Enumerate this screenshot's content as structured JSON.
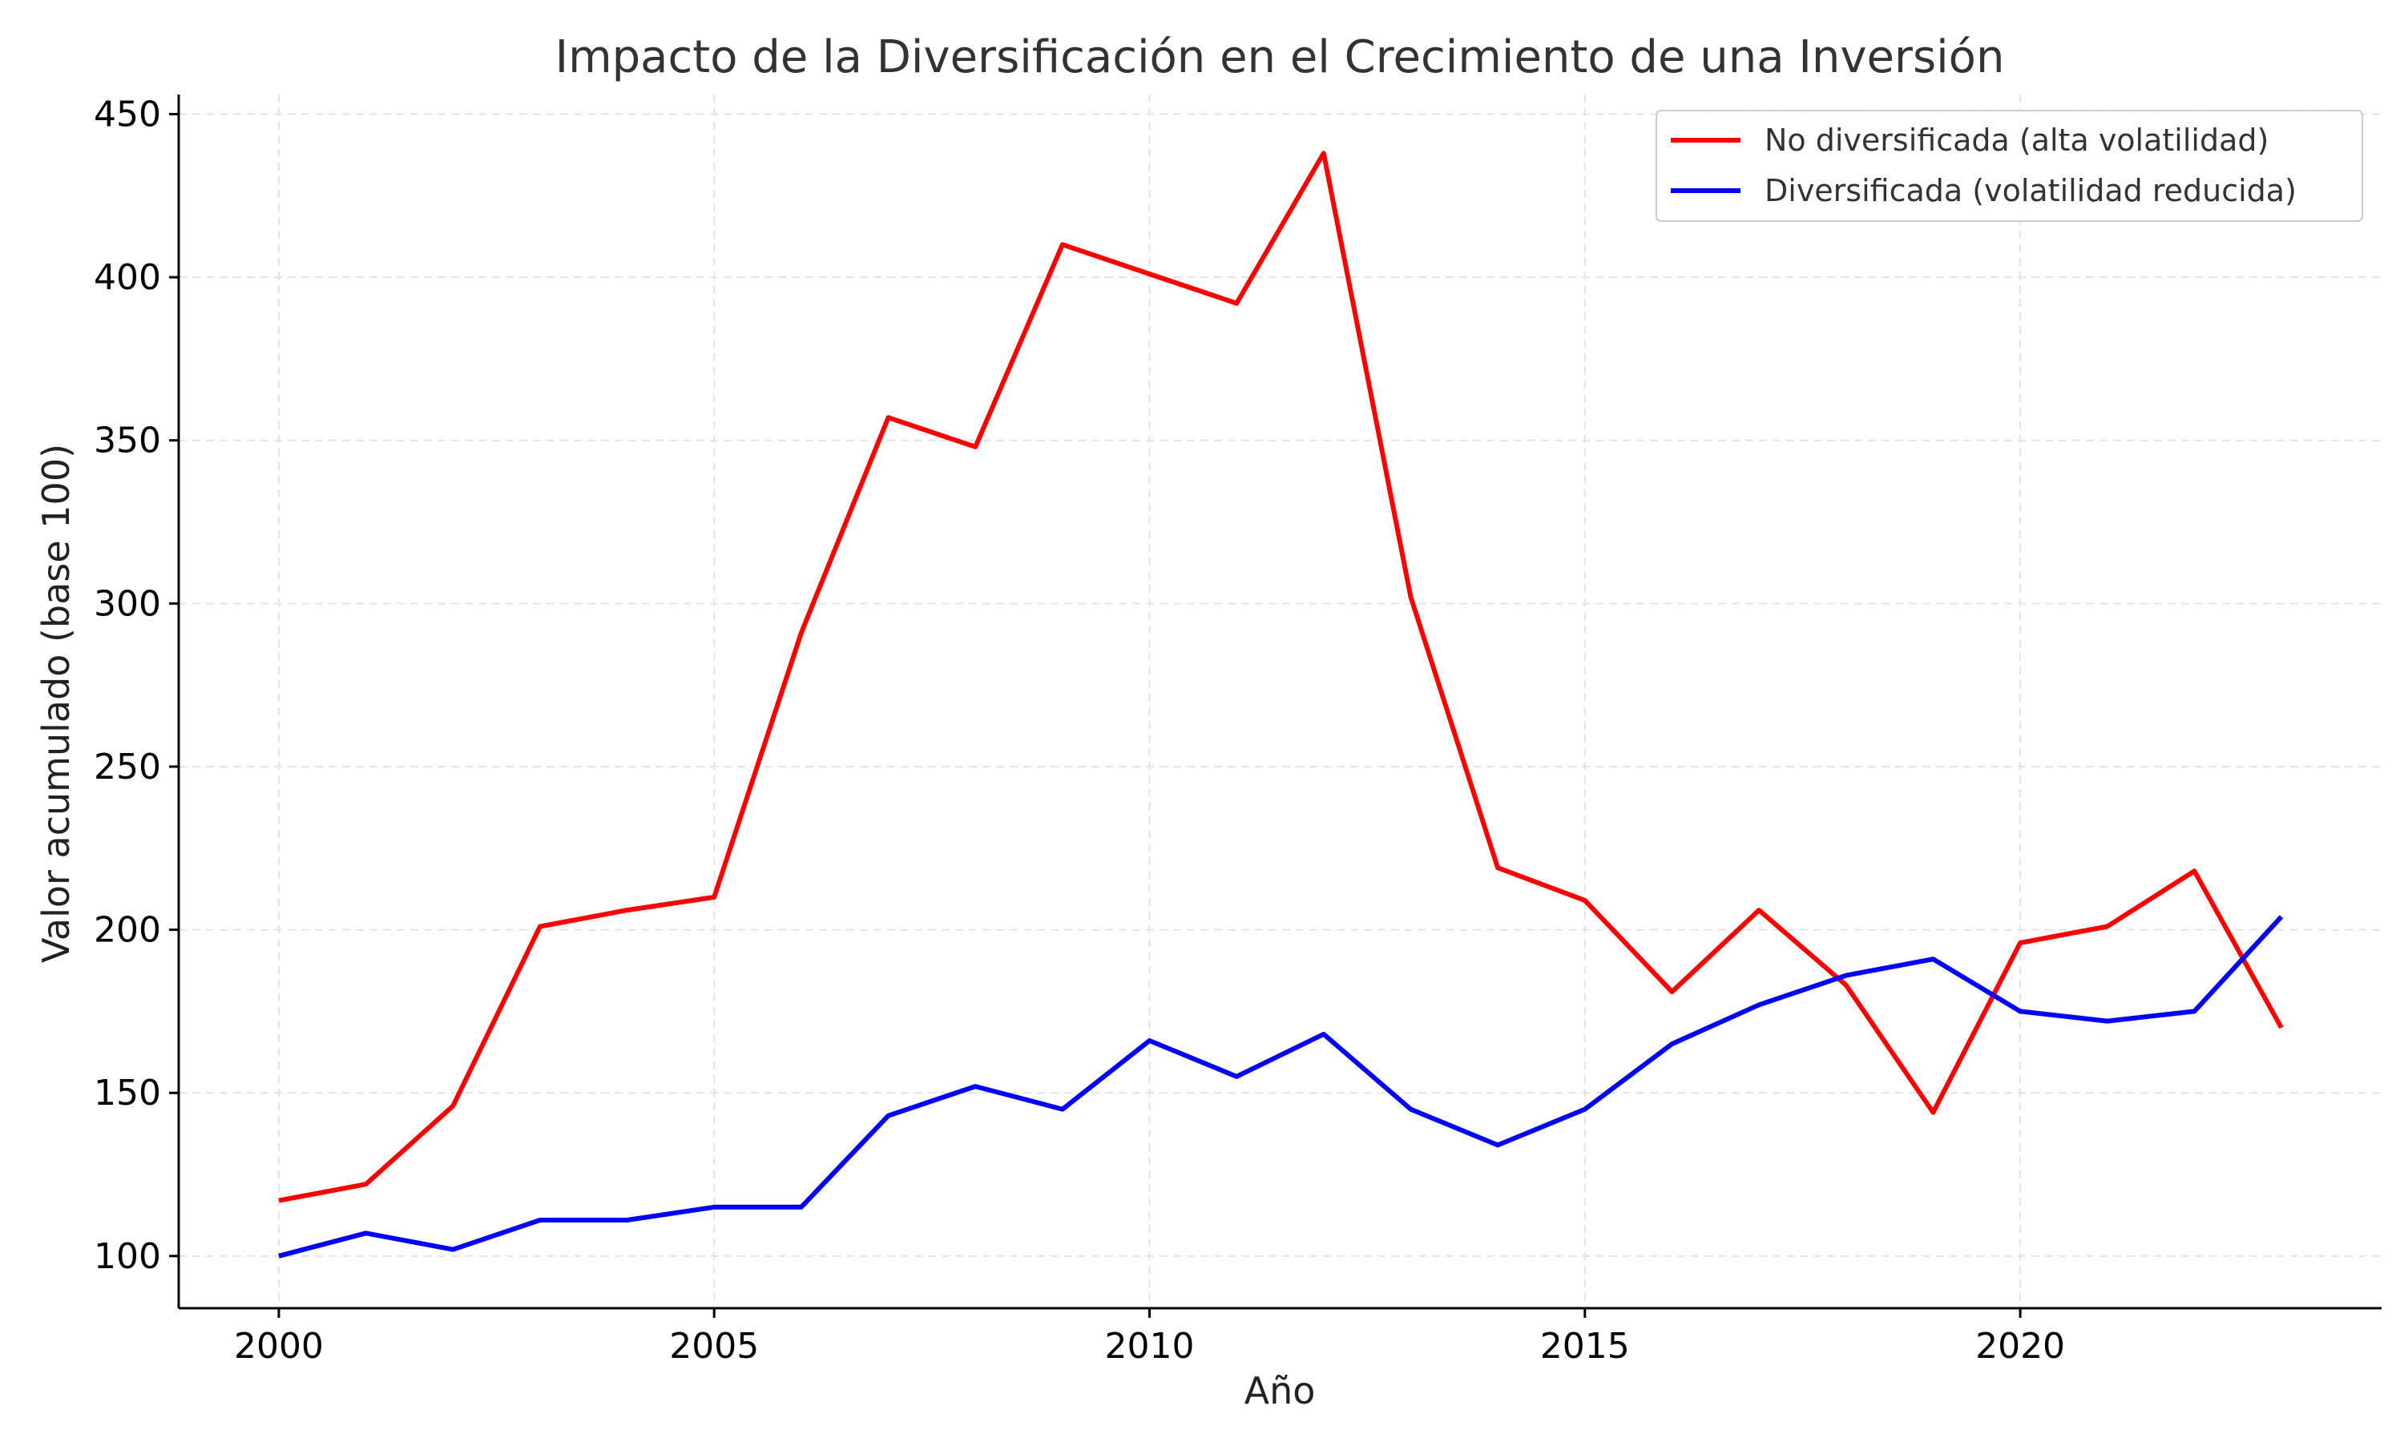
{
  "chart_data": {
    "type": "line",
    "title": "Impacto de la Diversificación en el Crecimiento de una Inversión",
    "xlabel": "Año",
    "ylabel": "Valor acumulado (base 100)",
    "x": [
      2000,
      2001,
      2002,
      2003,
      2004,
      2005,
      2006,
      2007,
      2008,
      2009,
      2010,
      2011,
      2012,
      2013,
      2014,
      2015,
      2016,
      2017,
      2018,
      2019,
      2020,
      2021,
      2022,
      2023
    ],
    "xlim": [
      1998.85,
      2024.15
    ],
    "ylim": [
      84,
      456
    ],
    "xticks": [
      2000,
      2005,
      2010,
      2015,
      2020
    ],
    "yticks": [
      100,
      150,
      200,
      250,
      300,
      350,
      400,
      450
    ],
    "grid": true,
    "legend_position": "top-right",
    "series": [
      {
        "name": "No diversificada (alta volatilidad)",
        "color": "#ff0000",
        "values": [
          117,
          122,
          146,
          201,
          206,
          210,
          291,
          357,
          348,
          410,
          401,
          392,
          438,
          302,
          219,
          209,
          181,
          206,
          183,
          144,
          196,
          201,
          218,
          170
        ]
      },
      {
        "name": "Diversificada (volatilidad reducida)",
        "color": "#0000ff",
        "values": [
          100,
          107,
          102,
          111,
          111,
          115,
          115,
          143,
          152,
          145,
          166,
          155,
          168,
          145,
          134,
          145,
          165,
          177,
          186,
          191,
          175,
          172,
          175,
          204
        ]
      }
    ]
  }
}
